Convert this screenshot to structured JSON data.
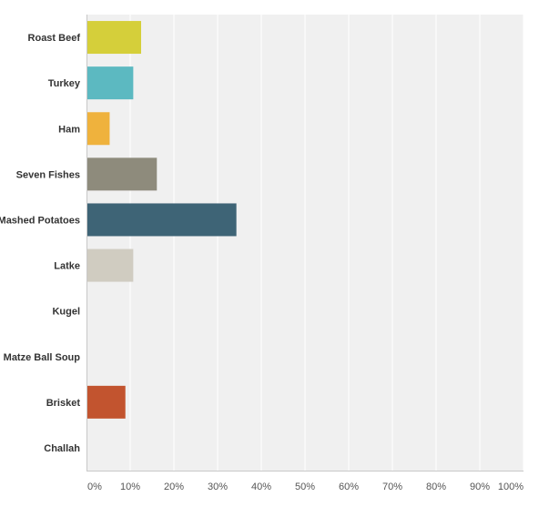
{
  "chart_data": {
    "type": "bar",
    "orientation": "horizontal",
    "categories": [
      "Roast Beef",
      "Turkey",
      "Ham",
      "Seven Fishes",
      "Mashed Potatoes",
      "Latke",
      "Kugel",
      "Matze Ball Soup",
      "Brisket",
      "Challah"
    ],
    "values": [
      12.5,
      10.7,
      5.3,
      16.1,
      34.3,
      10.7,
      0,
      0,
      8.9,
      0
    ],
    "colors": [
      "#d5cf3a",
      "#5cb9c1",
      "#efb23d",
      "#8e8b7c",
      "#3e6476",
      "#d0ccc1",
      "#cccccc",
      "#cccccc",
      "#c2542f",
      "#cccccc"
    ],
    "xlim": [
      0,
      100
    ],
    "xticks": [
      "0%",
      "10%",
      "20%",
      "30%",
      "40%",
      "50%",
      "60%",
      "70%",
      "80%",
      "90%",
      "100%"
    ],
    "grid": true,
    "plot_background": "#f0f0f0",
    "gridline_color": "#ffffff",
    "title": "",
    "xlabel": "",
    "ylabel": ""
  }
}
